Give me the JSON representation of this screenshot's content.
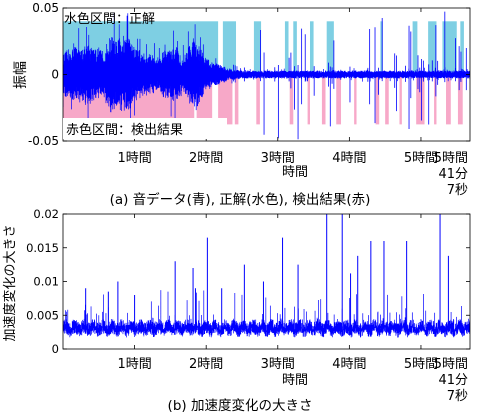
{
  "chart_data": [
    {
      "type": "line",
      "caption": "(a) 音データ(青), 正解(水色), 検出結果(赤)",
      "ylabel": "振幅",
      "xlabel": "時間",
      "ylim": [
        -0.05,
        0.05
      ],
      "y_ticks": [
        {
          "value": 0.05,
          "label": "0.05"
        },
        {
          "value": 0,
          "label": "0"
        },
        {
          "value": -0.05,
          "label": "-0.05"
        }
      ],
      "x_range_min": [
        0,
        341.1
      ],
      "x_ticks_min": [
        {
          "value": 60,
          "label": "1時間"
        },
        {
          "value": 120,
          "label": "2時間"
        },
        {
          "value": 180,
          "label": "3時間"
        },
        {
          "value": 240,
          "label": "4時間"
        },
        {
          "value": 300,
          "label": "5時間"
        }
      ],
      "x_end_label": [
        "5時間",
        "41分",
        "7秒"
      ],
      "annotations": [
        "水色区間：正解",
        "赤色区間：検出結果"
      ],
      "series": [
        {
          "role": "audio",
          "color": "#0000ff",
          "envelope": [
            [
              0,
              0.015
            ],
            [
              5,
              0.02
            ],
            [
              10,
              0.022
            ],
            [
              15,
              0.018
            ],
            [
              20,
              0.025
            ],
            [
              25,
              0.02
            ],
            [
              30,
              0.018
            ],
            [
              35,
              0.02
            ],
            [
              40,
              0.03
            ],
            [
              45,
              0.025
            ],
            [
              50,
              0.03
            ],
            [
              55,
              0.028
            ],
            [
              60,
              0.02
            ],
            [
              65,
              0.018
            ],
            [
              70,
              0.016
            ],
            [
              75,
              0.015
            ],
            [
              80,
              0.01
            ],
            [
              85,
              0.02
            ],
            [
              90,
              0.018
            ],
            [
              95,
              0.022
            ],
            [
              100,
              0.012
            ],
            [
              105,
              0.02
            ],
            [
              110,
              0.03
            ],
            [
              115,
              0.02
            ],
            [
              120,
              0.012
            ],
            [
              125,
              0.01
            ],
            [
              130,
              0.008
            ],
            [
              135,
              0.006
            ],
            [
              140,
              0.004
            ],
            [
              145,
              0.004
            ],
            [
              150,
              0.003
            ],
            [
              160,
              0.003
            ],
            [
              170,
              0.003
            ],
            [
              180,
              0.003
            ],
            [
              190,
              0.003
            ],
            [
              200,
              0.003
            ],
            [
              220,
              0.003
            ],
            [
              240,
              0.003
            ],
            [
              260,
              0.003
            ],
            [
              280,
              0.003
            ],
            [
              300,
              0.003
            ],
            [
              320,
              0.003
            ],
            [
              341,
              0.003
            ]
          ]
        },
        {
          "role": "ground_truth",
          "color": "#7ecfe3",
          "intervals": [
            [
              0,
              130
            ],
            [
              134,
              145
            ],
            [
              160,
              166
            ],
            [
              186,
              189
            ],
            [
              193,
              196
            ],
            [
              207,
              210
            ],
            [
              221,
              227
            ],
            [
              266,
              268
            ],
            [
              293,
              297
            ],
            [
              306,
              313
            ],
            [
              318,
              330
            ],
            [
              333,
              336
            ]
          ]
        },
        {
          "role": "detection",
          "color": "#f7a8c8",
          "intervals": [
            [
              0,
              110
            ],
            [
              112,
              125
            ],
            [
              130,
              142
            ],
            [
              144,
              147
            ],
            [
              162,
              165
            ],
            [
              190,
              193
            ],
            [
              205,
              207
            ],
            [
              217,
              220
            ],
            [
              229,
              233
            ],
            [
              244,
              246
            ],
            [
              262,
              265
            ],
            [
              270,
              273
            ],
            [
              282,
              284
            ],
            [
              296,
              303
            ],
            [
              311,
              313
            ],
            [
              321,
              325
            ],
            [
              331,
              335
            ]
          ]
        }
      ]
    },
    {
      "type": "line",
      "caption": "(b) 加速度変化の大きさ",
      "ylabel": "加速度変化の大きさ",
      "xlabel": "時間",
      "ylim": [
        0,
        0.02
      ],
      "y_ticks": [
        {
          "value": 0,
          "label": "0"
        },
        {
          "value": 0.005,
          "label": "0.005"
        },
        {
          "value": 0.01,
          "label": "0.01"
        },
        {
          "value": 0.015,
          "label": "0.015"
        },
        {
          "value": 0.02,
          "label": "0.02"
        }
      ],
      "x_range_min": [
        0,
        341.1
      ],
      "x_ticks_min": [
        {
          "value": 60,
          "label": "1時間"
        },
        {
          "value": 120,
          "label": "2時間"
        },
        {
          "value": 180,
          "label": "3時間"
        },
        {
          "value": 240,
          "label": "4時間"
        },
        {
          "value": 300,
          "label": "5時間"
        }
      ],
      "x_end_label": [
        "5時間",
        "41分",
        "7秒"
      ],
      "series": [
        {
          "role": "acceleration",
          "color": "#0000ff",
          "baseline": 0.003,
          "spikes": [
            [
              19,
              0.009
            ],
            [
              38,
              0.0085
            ],
            [
              46,
              0.01
            ],
            [
              60,
              0.008
            ],
            [
              94,
              0.013
            ],
            [
              109,
              0.012
            ],
            [
              111,
              0.009
            ],
            [
              121,
              0.0165
            ],
            [
              133,
              0.009
            ],
            [
              152,
              0.0125
            ],
            [
              168,
              0.01
            ],
            [
              184,
              0.0165
            ],
            [
              197,
              0.0125
            ],
            [
              221,
              0.02
            ],
            [
              234,
              0.02
            ],
            [
              241,
              0.0112
            ],
            [
              247,
              0.0138
            ],
            [
              258,
              0.016
            ],
            [
              269,
              0.016
            ],
            [
              288,
              0.016
            ],
            [
              316,
              0.02
            ],
            [
              323,
              0.0138
            ]
          ]
        }
      ]
    }
  ]
}
